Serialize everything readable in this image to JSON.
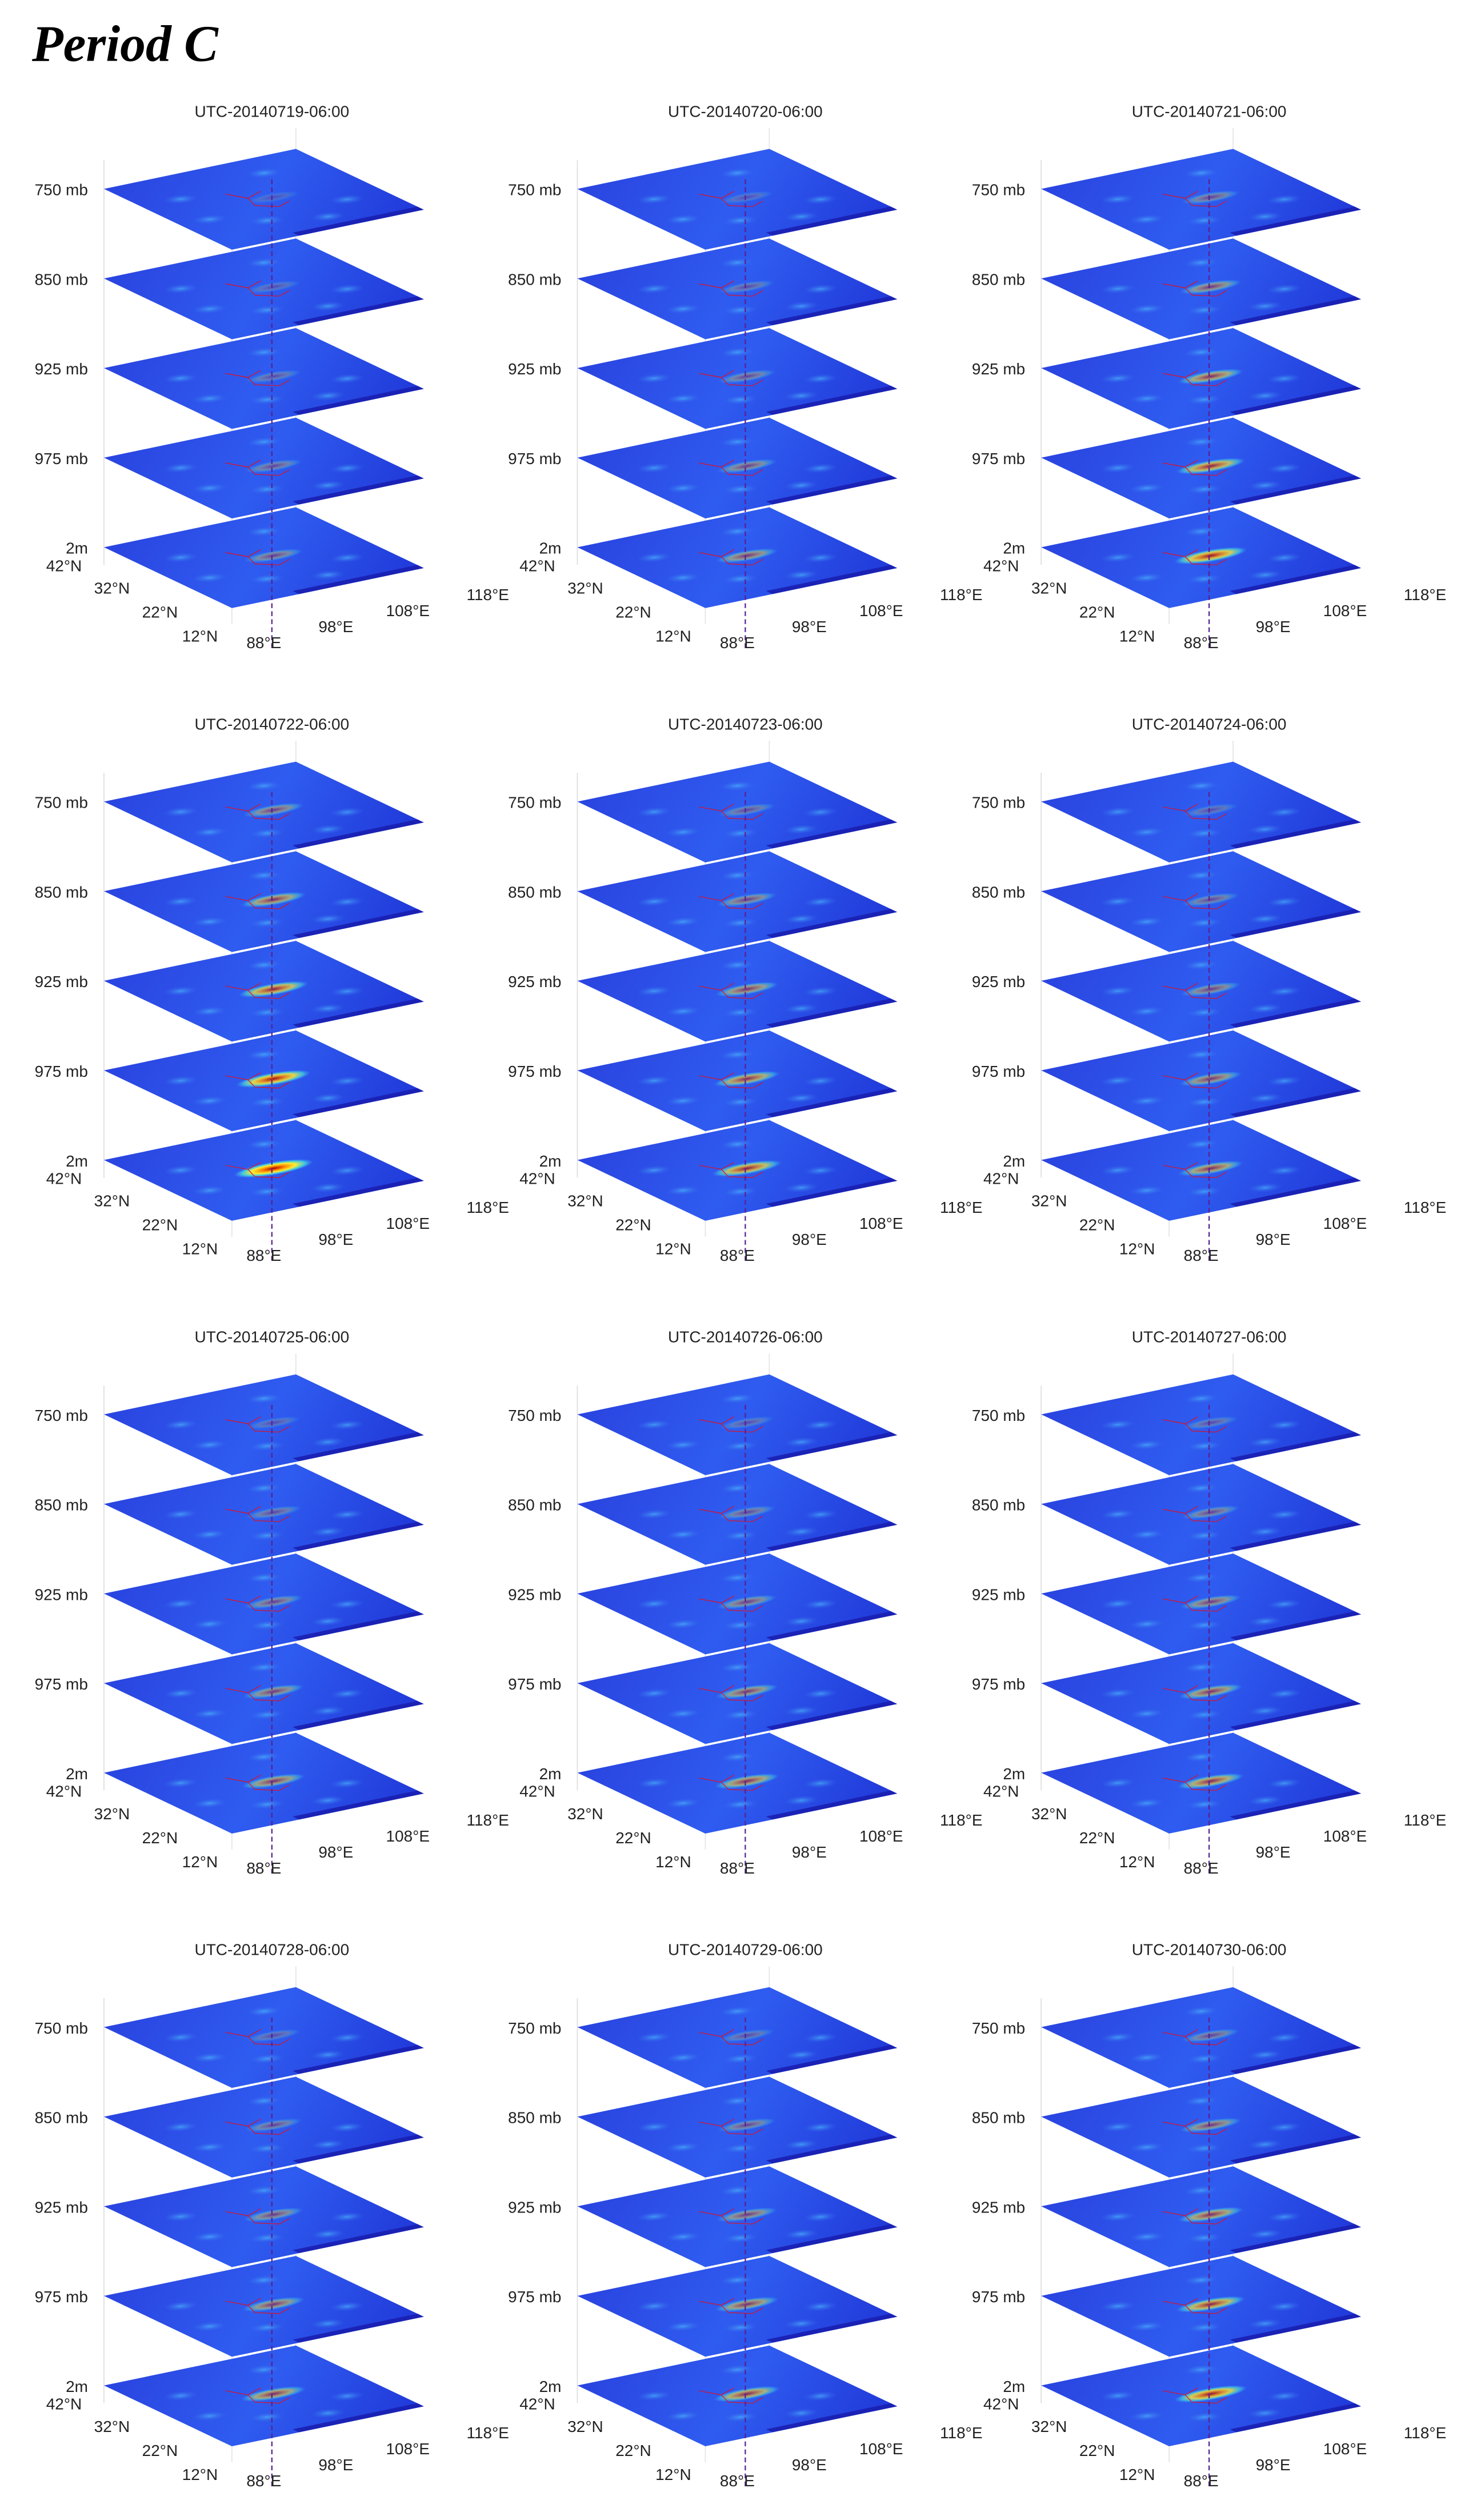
{
  "title": "Period C",
  "panels": [
    {
      "title": "UTC-20140719-06:00"
    },
    {
      "title": "UTC-20140720-06:00"
    },
    {
      "title": "UTC-20140721-06:00"
    },
    {
      "title": "UTC-20140722-06:00"
    },
    {
      "title": "UTC-20140723-06:00"
    },
    {
      "title": "UTC-20140724-06:00"
    },
    {
      "title": "UTC-20140725-06:00"
    },
    {
      "title": "UTC-20140726-06:00"
    },
    {
      "title": "UTC-20140727-06:00"
    },
    {
      "title": "UTC-20140728-06:00"
    },
    {
      "title": "UTC-20140729-06:00"
    },
    {
      "title": "UTC-20140730-06:00"
    }
  ],
  "levels": [
    "750 mb",
    "850 mb",
    "925 mb",
    "975 mb",
    "2m"
  ],
  "lat_ticks": [
    "42°N",
    "32°N",
    "22°N",
    "12°N"
  ],
  "lon_ticks": [
    "88°E",
    "98°E",
    "108°E",
    "118°E"
  ]
}
